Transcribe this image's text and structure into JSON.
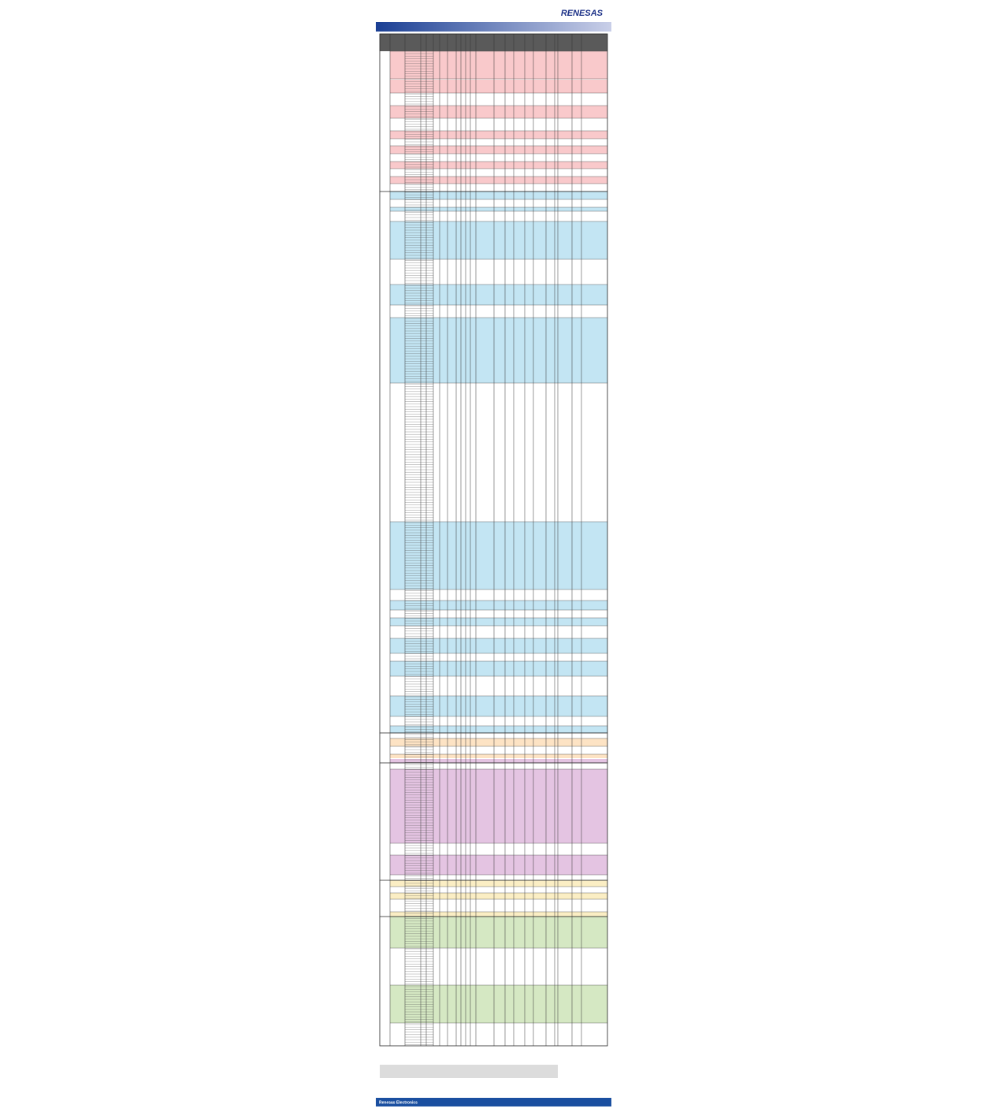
{
  "header": {
    "logo": "RENESAS"
  },
  "footer": {
    "company": "Renesas Electronics"
  }
}
